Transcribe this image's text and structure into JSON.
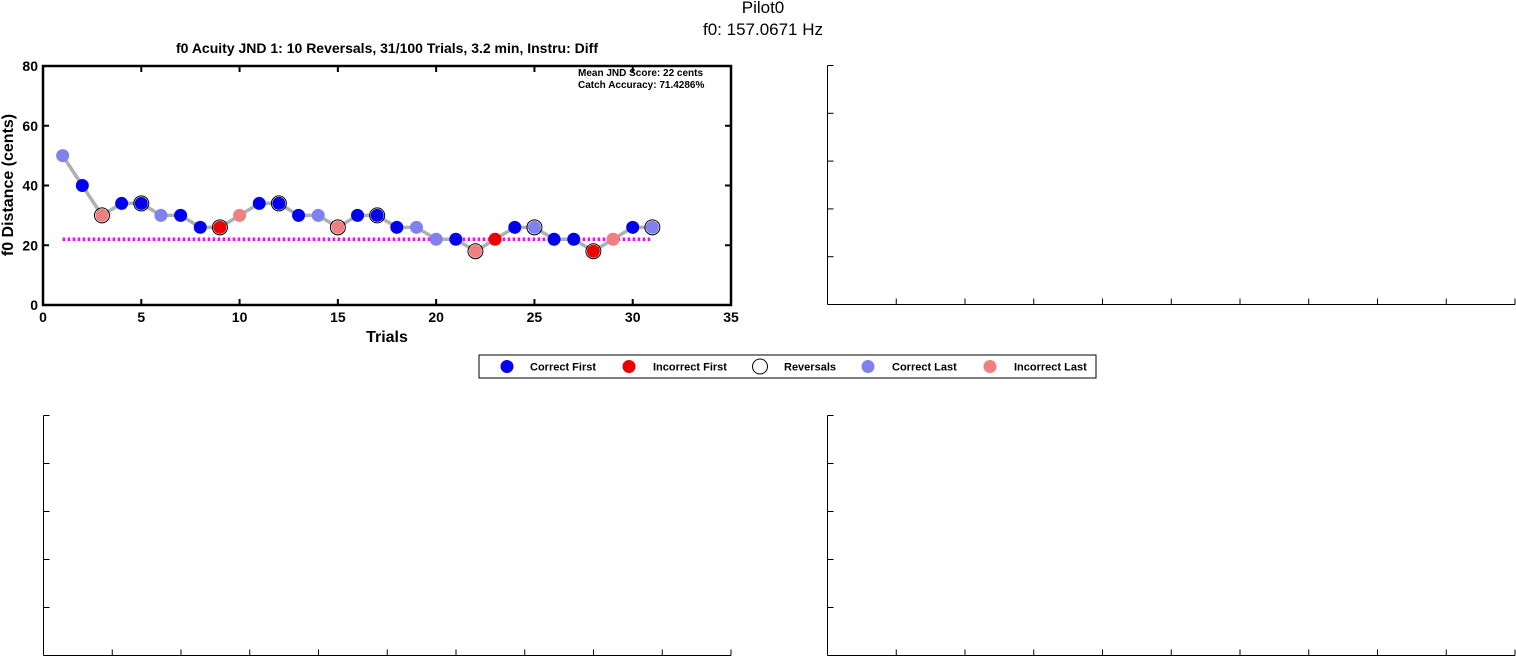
{
  "figure": {
    "subject": "Pilot0",
    "f0_label": "f0: 157.0671 Hz"
  },
  "chart_data": {
    "type": "scatter",
    "title": "f0 Acuity JND 1: 10 Reversals, 31/100 Trials, 3.2 min, Instru: Diff",
    "xlabel": "Trials",
    "ylabel": "f0 Distance (cents)",
    "xlim": [
      0,
      35
    ],
    "ylim": [
      0,
      80
    ],
    "xticks": [
      0,
      5,
      10,
      15,
      20,
      25,
      30,
      35
    ],
    "yticks": [
      0,
      20,
      40,
      60,
      80
    ],
    "annotations": [
      "Mean JND Score: 22 cents",
      "Catch Accuracy: 71.4286%"
    ],
    "mean_jnd": 22,
    "colors": {
      "correct_first": "#0000ee",
      "incorrect_first": "#ee0000",
      "correct_last": "#8080ee",
      "incorrect_last": "#f08080",
      "track": "#b0b0b0",
      "mean_line": "#ff00ff"
    },
    "legend": {
      "placement": "below plot",
      "entries": [
        "Correct First",
        "Incorrect First",
        "Reversals",
        "Correct Last",
        "Incorrect Last"
      ]
    },
    "trials": [
      1,
      2,
      3,
      4,
      5,
      6,
      7,
      8,
      9,
      10,
      11,
      12,
      13,
      14,
      15,
      16,
      17,
      18,
      19,
      20,
      21,
      22,
      23,
      24,
      25,
      26,
      27,
      28,
      29,
      30,
      31
    ],
    "distance": [
      50,
      40,
      30,
      34,
      34,
      30,
      30,
      26,
      26,
      30,
      34,
      34,
      30,
      30,
      26,
      30,
      30,
      26,
      26,
      22,
      22,
      18,
      22,
      26,
      26,
      22,
      22,
      18,
      22,
      26,
      26
    ],
    "response": [
      "correct_last",
      "correct_first",
      "incorrect_last",
      "correct_first",
      "correct_first",
      "correct_last",
      "correct_first",
      "correct_first",
      "incorrect_first",
      "incorrect_last",
      "correct_first",
      "correct_first",
      "correct_first",
      "correct_last",
      "incorrect_last",
      "correct_first",
      "correct_first",
      "correct_first",
      "correct_last",
      "correct_last",
      "correct_first",
      "incorrect_last",
      "incorrect_first",
      "correct_first",
      "correct_last",
      "correct_first",
      "correct_first",
      "incorrect_first",
      "incorrect_last",
      "correct_first",
      "correct_last"
    ],
    "reversal_trials": [
      3,
      5,
      9,
      12,
      15,
      17,
      22,
      25,
      28,
      31
    ]
  }
}
